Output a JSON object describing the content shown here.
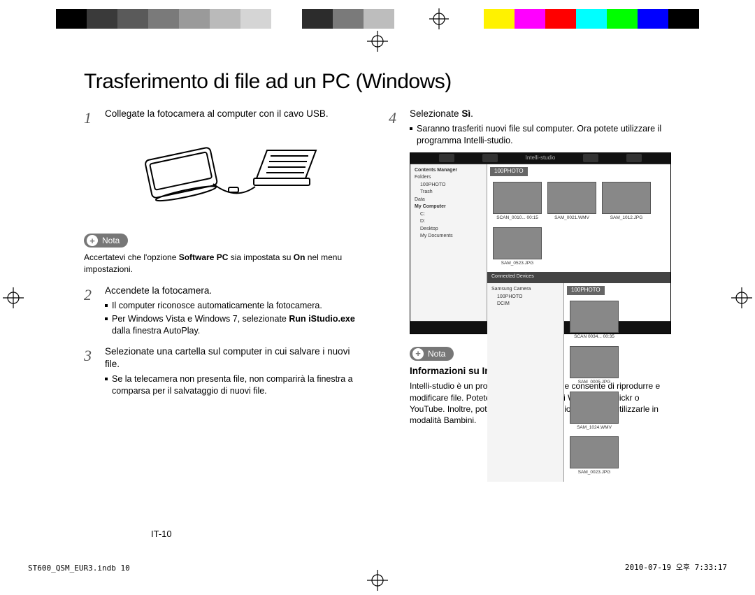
{
  "colorbar": {
    "left": [
      "#000000",
      "#3a3a3a",
      "#5a5a5a",
      "#7a7a7a",
      "#9a9a9a",
      "#bababa",
      "#d5d5d5",
      "#ffffff",
      "#2c2c2c",
      "#7a7a7a",
      "#bdbdbd",
      "#ffffff"
    ],
    "right": [
      "#ffffff",
      "#fff200",
      "#ff00ff",
      "#ff0000",
      "#00ffff",
      "#00ff00",
      "#0000ff",
      "#000000"
    ]
  },
  "title": "Trasferimento di file ad un PC (Windows)",
  "left": {
    "step1": {
      "num": "1",
      "text": "Collegate la fotocamera al computer con il cavo USB."
    },
    "nota_label": "Nota",
    "nota_text_pre": "Accertatevi che l'opzione ",
    "nota_bold": "Software PC",
    "nota_text_mid": " sia impostata su ",
    "nota_bold2": "On",
    "nota_text_post": " nel menu impostazioni.",
    "step2": {
      "num": "2",
      "text": "Accendete la fotocamera.",
      "b1": "Il computer riconosce automaticamente la fotocamera.",
      "b2_pre": "Per Windows Vista e Windows 7, selezionate ",
      "b2_bold": "Run iStudio.exe",
      "b2_post": " dalla finestra AutoPlay."
    },
    "step3": {
      "num": "3",
      "text": "Selezionate una cartella sul computer in cui salvare i nuovi file.",
      "b1": "Se la telecamera non presenta file, non comparirà la finestra a comparsa per il salvataggio di nuovi file."
    }
  },
  "right": {
    "step4": {
      "num": "4",
      "text_pre": "Selezionate ",
      "text_bold": "Sì",
      "text_post": ".",
      "b1": "Saranno trasferiti nuovi file sul computer. Ora potete utilizzare il programma Intelli-studio."
    },
    "screenshot": {
      "app_title": "Intelli-studio",
      "tree": {
        "l1": "Contents Manager",
        "l2": "Folders",
        "l3": "100PHOTO",
        "l4": "Trash",
        "l5": "Data",
        "l6": "My Computer",
        "l7": "C:",
        "l8": "D:",
        "l9": "Desktop",
        "l10": "My Documents"
      },
      "panel1": "100PHOTO",
      "thumbs1": [
        "SCAN_0010... 00:15",
        "SAM_0021.WMV",
        "SAM_1012.JPG",
        "SAM_0523.JPG"
      ],
      "divider": "Connected Devices",
      "tree2": {
        "l1": "Samsung Camera",
        "l2": "100PHOTO",
        "l3": "DCIM"
      },
      "panel2": "100PHOTO",
      "thumbs2": [
        "SCAN 0034... 00:35",
        "SAM_0005.JPG",
        "SAM_1024.WMV",
        "SAM_0023.JPG"
      ]
    },
    "nota_label": "Nota",
    "info_heading": "Informazioni su Intelli-studio",
    "info_body": "Intelli-studio è un programma integrato che consente di riprodurre e modificare file. Potete caricare i file sui siti Web, come Flickr o YouTube. Inoltre, potete scaricare animazioni brevi per utilizzarle in modalità Bambini."
  },
  "page_num": "IT-10",
  "footer_left": "ST600_QSM_EUR3.indb   10",
  "footer_right": "2010-07-19   오후 7:33:17"
}
